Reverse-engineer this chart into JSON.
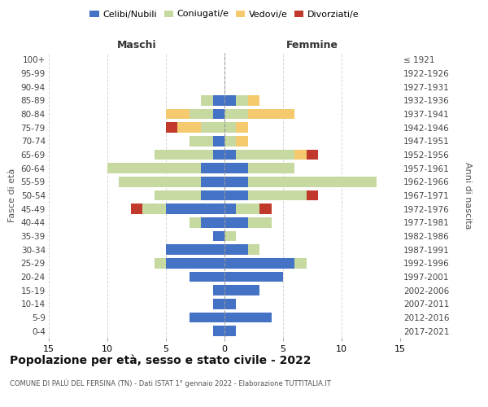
{
  "age_groups": [
    "0-4",
    "5-9",
    "10-14",
    "15-19",
    "20-24",
    "25-29",
    "30-34",
    "35-39",
    "40-44",
    "45-49",
    "50-54",
    "55-59",
    "60-64",
    "65-69",
    "70-74",
    "75-79",
    "80-84",
    "85-89",
    "90-94",
    "95-99",
    "100+"
  ],
  "birth_years": [
    "2017-2021",
    "2012-2016",
    "2007-2011",
    "2002-2006",
    "1997-2001",
    "1992-1996",
    "1987-1991",
    "1982-1986",
    "1977-1981",
    "1972-1976",
    "1967-1971",
    "1962-1966",
    "1957-1961",
    "1952-1956",
    "1947-1951",
    "1942-1946",
    "1937-1941",
    "1932-1936",
    "1927-1931",
    "1922-1926",
    "≤ 1921"
  ],
  "maschi": {
    "celibi": [
      1,
      3,
      1,
      1,
      3,
      5,
      5,
      1,
      2,
      5,
      2,
      2,
      2,
      1,
      1,
      0,
      1,
      1,
      0,
      0,
      0
    ],
    "coniugati": [
      0,
      0,
      0,
      0,
      0,
      1,
      0,
      0,
      1,
      2,
      4,
      7,
      8,
      5,
      2,
      2,
      2,
      1,
      0,
      0,
      0
    ],
    "vedovi": [
      0,
      0,
      0,
      0,
      0,
      0,
      0,
      0,
      0,
      0,
      0,
      0,
      0,
      0,
      0,
      2,
      2,
      0,
      0,
      0,
      0
    ],
    "divorziati": [
      0,
      0,
      0,
      0,
      0,
      0,
      0,
      0,
      0,
      1,
      0,
      0,
      0,
      0,
      0,
      1,
      0,
      0,
      0,
      0,
      0
    ]
  },
  "femmine": {
    "nubili": [
      1,
      4,
      1,
      3,
      5,
      6,
      2,
      0,
      2,
      1,
      2,
      2,
      2,
      1,
      0,
      0,
      0,
      1,
      0,
      0,
      0
    ],
    "coniugate": [
      0,
      0,
      0,
      0,
      0,
      1,
      1,
      1,
      2,
      2,
      5,
      11,
      4,
      5,
      1,
      1,
      2,
      1,
      0,
      0,
      0
    ],
    "vedove": [
      0,
      0,
      0,
      0,
      0,
      0,
      0,
      0,
      0,
      0,
      0,
      0,
      0,
      1,
      1,
      1,
      4,
      1,
      0,
      0,
      0
    ],
    "divorziate": [
      0,
      0,
      0,
      0,
      0,
      0,
      0,
      0,
      0,
      1,
      1,
      0,
      0,
      1,
      0,
      0,
      0,
      0,
      0,
      0,
      0
    ]
  },
  "colors": {
    "celibi": "#4472c4",
    "coniugati": "#c5d9a0",
    "vedovi": "#f5c96e",
    "divorziati": "#c0392b"
  },
  "xlim": 15,
  "title": "Popolazione per età, sesso e stato civile - 2022",
  "subtitle": "COMUNE DI PALÙ DEL FERSINA (TN) - Dati ISTAT 1° gennaio 2022 - Elaborazione TUTTITALIA.IT",
  "ylabel_left": "Fasce di età",
  "ylabel_right": "Anni di nascita"
}
